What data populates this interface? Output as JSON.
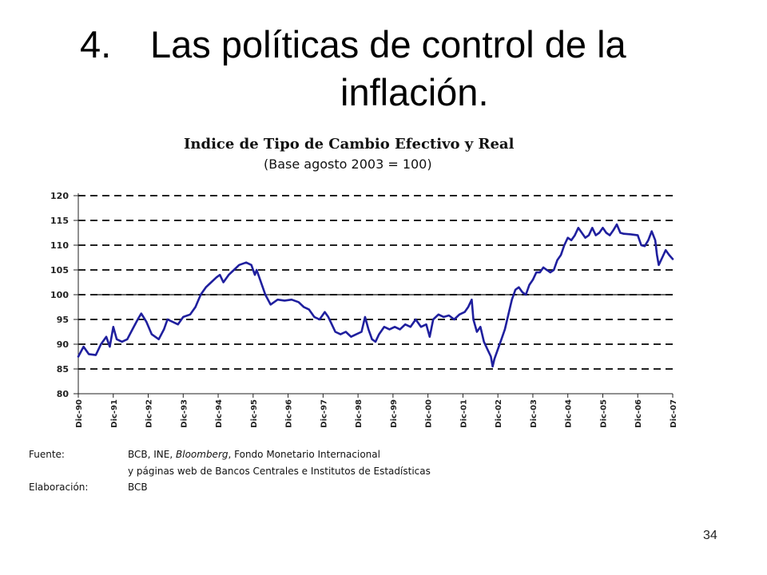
{
  "slide": {
    "number": "4.",
    "title_line1": "Las políticas de control de la",
    "title_line2": "inflación.",
    "page_number": "34"
  },
  "chart_data": {
    "type": "line",
    "title": "Indice de Tipo de Cambio Efectivo y Real",
    "subtitle": "(Base agosto 2003 = 100)",
    "xlabel": "",
    "ylabel": "",
    "ylim": [
      80,
      120
    ],
    "yticks": [
      "80",
      "85",
      "90",
      "95",
      "100",
      "105",
      "110",
      "115",
      "120"
    ],
    "xlim": [
      0,
      17
    ],
    "xticks": [
      "Dic-90",
      "Dic-91",
      "Dic-92",
      "Dic-93",
      "Dic-94",
      "Dic-95",
      "Dic-96",
      "Dic-97",
      "Dic-98",
      "Dic-99",
      "Dic-00",
      "Dic-01",
      "Dic-02",
      "Dic-03",
      "Dic-04",
      "Dic-05",
      "Dic-06",
      "Dic-07"
    ],
    "grid": "dashed horizontal",
    "reference_line": 100,
    "line_color": "#1f1f9e",
    "series": [
      {
        "name": "",
        "points": [
          [
            0.0,
            87.5
          ],
          [
            0.15,
            89.5
          ],
          [
            0.3,
            88
          ],
          [
            0.5,
            87.8
          ],
          [
            0.65,
            90
          ],
          [
            0.8,
            91.5
          ],
          [
            0.9,
            89.5
          ],
          [
            1.0,
            93.5
          ],
          [
            1.1,
            91
          ],
          [
            1.25,
            90.5
          ],
          [
            1.4,
            91
          ],
          [
            1.55,
            93
          ],
          [
            1.7,
            95
          ],
          [
            1.8,
            96.2
          ],
          [
            1.95,
            94.5
          ],
          [
            2.1,
            92
          ],
          [
            2.3,
            91
          ],
          [
            2.45,
            93
          ],
          [
            2.55,
            95
          ],
          [
            2.7,
            94.5
          ],
          [
            2.85,
            94
          ],
          [
            3.0,
            95.5
          ],
          [
            3.2,
            96
          ],
          [
            3.35,
            97.5
          ],
          [
            3.5,
            100
          ],
          [
            3.65,
            101.5
          ],
          [
            3.8,
            102.5
          ],
          [
            3.95,
            103.5
          ],
          [
            4.05,
            104
          ],
          [
            4.15,
            102.5
          ],
          [
            4.3,
            104
          ],
          [
            4.45,
            105
          ],
          [
            4.6,
            106
          ],
          [
            4.8,
            106.5
          ],
          [
            4.95,
            106
          ],
          [
            5.05,
            104
          ],
          [
            5.1,
            105
          ],
          [
            5.2,
            103
          ],
          [
            5.35,
            100
          ],
          [
            5.5,
            98
          ],
          [
            5.7,
            99
          ],
          [
            5.9,
            98.8
          ],
          [
            6.1,
            99
          ],
          [
            6.3,
            98.5
          ],
          [
            6.45,
            97.5
          ],
          [
            6.6,
            97
          ],
          [
            6.75,
            95.5
          ],
          [
            6.9,
            95
          ],
          [
            7.05,
            96.5
          ],
          [
            7.15,
            95.5
          ],
          [
            7.25,
            94
          ],
          [
            7.35,
            92.5
          ],
          [
            7.5,
            92
          ],
          [
            7.65,
            92.5
          ],
          [
            7.8,
            91.5
          ],
          [
            7.95,
            92
          ],
          [
            8.1,
            92.5
          ],
          [
            8.2,
            95.5
          ],
          [
            8.3,
            93
          ],
          [
            8.4,
            91
          ],
          [
            8.5,
            90.5
          ],
          [
            8.6,
            92
          ],
          [
            8.75,
            93.5
          ],
          [
            8.9,
            93
          ],
          [
            9.05,
            93.5
          ],
          [
            9.2,
            93
          ],
          [
            9.35,
            94
          ],
          [
            9.5,
            93.5
          ],
          [
            9.65,
            95
          ],
          [
            9.8,
            93.5
          ],
          [
            9.95,
            94
          ],
          [
            10.05,
            91.5
          ],
          [
            10.15,
            95
          ],
          [
            10.3,
            96
          ],
          [
            10.45,
            95.5
          ],
          [
            10.6,
            95.8
          ],
          [
            10.75,
            95
          ],
          [
            10.9,
            96
          ],
          [
            11.05,
            96.5
          ],
          [
            11.15,
            97.5
          ],
          [
            11.25,
            99
          ],
          [
            11.3,
            95
          ],
          [
            11.4,
            92.5
          ],
          [
            11.5,
            93.5
          ],
          [
            11.6,
            90.5
          ],
          [
            11.7,
            89
          ],
          [
            11.8,
            87.5
          ],
          [
            11.85,
            85.5
          ],
          [
            11.9,
            87
          ],
          [
            12.0,
            89
          ],
          [
            12.1,
            91
          ],
          [
            12.2,
            93
          ],
          [
            12.3,
            96
          ],
          [
            12.4,
            99
          ],
          [
            12.5,
            101
          ],
          [
            12.6,
            101.5
          ],
          [
            12.7,
            100.5
          ],
          [
            12.8,
            100
          ],
          [
            12.9,
            102
          ],
          [
            13.0,
            103
          ],
          [
            13.1,
            104.5
          ],
          [
            13.2,
            104.5
          ],
          [
            13.3,
            105.5
          ],
          [
            13.4,
            105
          ],
          [
            13.5,
            104.5
          ],
          [
            13.6,
            105
          ],
          [
            13.7,
            107
          ],
          [
            13.8,
            108
          ],
          [
            13.9,
            110
          ],
          [
            14.0,
            111.5
          ],
          [
            14.1,
            111
          ],
          [
            14.2,
            112
          ],
          [
            14.3,
            113.5
          ],
          [
            14.4,
            112.5
          ],
          [
            14.5,
            111.5
          ],
          [
            14.6,
            112
          ],
          [
            14.7,
            113.5
          ],
          [
            14.8,
            112
          ],
          [
            14.9,
            112.5
          ],
          [
            15.0,
            113.5
          ],
          [
            15.1,
            112.5
          ],
          [
            15.2,
            112
          ],
          [
            15.3,
            113
          ],
          [
            15.4,
            114.2
          ],
          [
            15.5,
            112.5
          ],
          [
            15.6,
            112.3
          ],
          [
            15.8,
            112.2
          ],
          [
            16.0,
            112
          ],
          [
            16.1,
            110
          ],
          [
            16.2,
            109.8
          ],
          [
            16.3,
            111
          ],
          [
            16.4,
            112.8
          ],
          [
            16.5,
            111
          ],
          [
            16.55,
            108
          ],
          [
            16.6,
            106
          ],
          [
            16.7,
            107.5
          ],
          [
            16.8,
            109
          ],
          [
            16.9,
            108
          ],
          [
            17.0,
            107.2
          ]
        ]
      }
    ]
  },
  "source": {
    "fuente_label": "Fuente:",
    "fuente_text_1a": "BCB, INE, ",
    "fuente_text_1b": "Bloomberg",
    "fuente_text_1c": ", Fondo Monetario Internacional",
    "fuente_text_2": "y páginas web de Bancos Centrales e Institutos de Estadísticas",
    "elaboracion_label": "Elaboración:",
    "elaboracion_text": "BCB"
  }
}
